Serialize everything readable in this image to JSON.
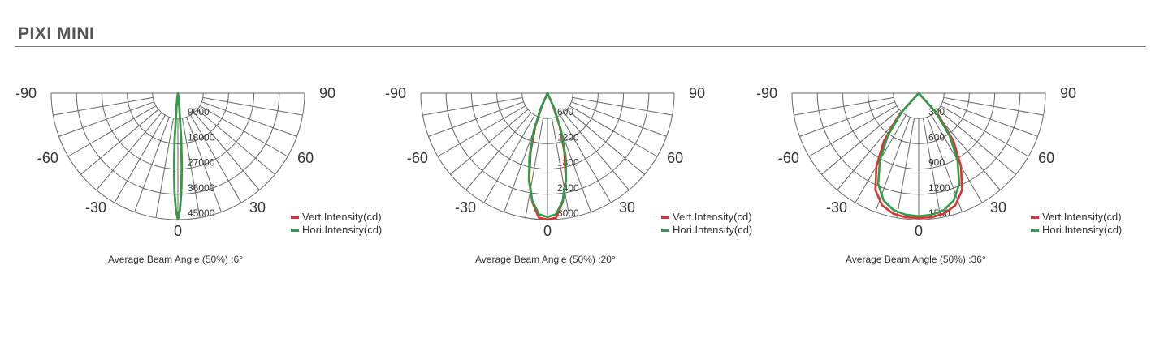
{
  "title": "PIXI MINI",
  "colors": {
    "vert": "#e03030",
    "hori": "#2e9c4a",
    "grid": "#666666"
  },
  "chart_data": [
    {
      "type": "polar",
      "angle_labels": [
        "-90",
        "-60",
        "-30",
        "0",
        "30",
        "60",
        "90"
      ],
      "radial_ticks": [
        "9000",
        "18000",
        "27000",
        "36000",
        "45000"
      ],
      "rmax": 45000,
      "beam_angle_deg": 6,
      "caption": "Average Beam Angle (50%) :6°",
      "series": [
        {
          "name": "Vert.Intensity(cd)",
          "angles": [
            -10,
            -8,
            -6,
            -4,
            -3,
            -2,
            -1,
            0,
            1,
            2,
            3,
            4,
            6,
            8,
            10
          ],
          "values": [
            0,
            1200,
            4500,
            17000,
            26000,
            35000,
            41500,
            45000,
            41500,
            35000,
            26000,
            17000,
            4500,
            1200,
            0
          ]
        },
        {
          "name": "Hori.Intensity(cd)",
          "angles": [
            -10,
            -8,
            -6,
            -4,
            -3,
            -2,
            -1,
            0,
            1,
            2,
            3,
            4,
            6,
            8,
            10
          ],
          "values": [
            0,
            1200,
            4500,
            17000,
            26000,
            35000,
            41500,
            45000,
            41500,
            35000,
            26000,
            17000,
            4500,
            1200,
            0
          ]
        }
      ]
    },
    {
      "type": "polar",
      "angle_labels": [
        "-90",
        "-60",
        "-30",
        "0",
        "30",
        "60",
        "90"
      ],
      "radial_ticks": [
        "600",
        "1200",
        "1800",
        "2400",
        "3000"
      ],
      "rmax": 3000,
      "beam_angle_deg": 20,
      "caption": "Average Beam Angle (50%) :20°",
      "series": [
        {
          "name": "Vert.Intensity(cd)",
          "angles": [
            -30,
            -24,
            -20,
            -16,
            -12,
            -8,
            -4,
            0,
            4,
            8,
            12,
            16,
            20,
            24,
            30
          ],
          "values": [
            0,
            300,
            850,
            1450,
            2080,
            2600,
            2960,
            3000,
            2960,
            2600,
            2080,
            1450,
            850,
            300,
            0
          ]
        },
        {
          "name": "Hori.Intensity(cd)",
          "angles": [
            -30,
            -24,
            -20,
            -16,
            -12,
            -8,
            -4,
            0,
            4,
            8,
            12,
            16,
            20,
            24,
            30
          ],
          "values": [
            0,
            400,
            950,
            1550,
            2120,
            2580,
            2880,
            2940,
            2880,
            2580,
            2120,
            1550,
            950,
            400,
            0
          ]
        }
      ]
    },
    {
      "type": "polar",
      "angle_labels": [
        "-90",
        "-60",
        "-30",
        "0",
        "30",
        "60",
        "90"
      ],
      "radial_ticks": [
        "300",
        "600",
        "900",
        "1200",
        "1500"
      ],
      "rmax": 1500,
      "beam_angle_deg": 36,
      "caption": "Average Beam Angle (50%) :36°",
      "series": [
        {
          "name": "Vert.Intensity(cd)",
          "angles": [
            -50,
            -42,
            -36,
            -30,
            -24,
            -18,
            -12,
            -6,
            0,
            6,
            12,
            18,
            24,
            30,
            36,
            42,
            50
          ],
          "values": [
            0,
            350,
            700,
            1000,
            1260,
            1400,
            1460,
            1480,
            1480,
            1480,
            1460,
            1400,
            1260,
            1000,
            700,
            350,
            0
          ]
        },
        {
          "name": "Hori.Intensity(cd)",
          "angles": [
            -50,
            -42,
            -36,
            -30,
            -24,
            -18,
            -12,
            -6,
            0,
            6,
            12,
            18,
            24,
            30,
            36,
            42,
            50
          ],
          "values": [
            0,
            300,
            620,
            920,
            1180,
            1340,
            1420,
            1450,
            1460,
            1450,
            1420,
            1340,
            1180,
            920,
            620,
            300,
            0
          ]
        }
      ]
    }
  ]
}
